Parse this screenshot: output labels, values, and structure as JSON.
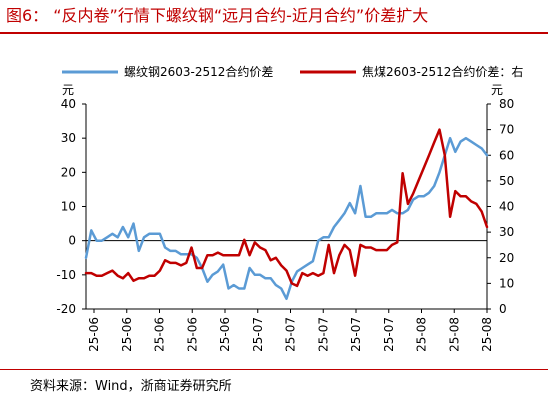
{
  "figure": {
    "title": "图6： “反内卷”行情下螺纹钢“远月合约-近月合约”价差扩大",
    "source": "资料来源：Wind，浙商证券研究所"
  },
  "colors": {
    "title": "#c00000",
    "series_rebar": "#5b9bd5",
    "series_coke": "#c00000"
  },
  "chart_data": {
    "type": "line",
    "left_axis_unit": "元",
    "right_axis_unit": "元",
    "ylim_left": [
      -20,
      40
    ],
    "yticks_left": [
      "-20",
      "-10",
      "0",
      "10",
      "20",
      "30",
      "40"
    ],
    "ylim_right": [
      0,
      80
    ],
    "yticks_right": [
      "0",
      "10",
      "20",
      "30",
      "40",
      "50",
      "60",
      "70",
      "80"
    ],
    "x_tick_labels": [
      "25-06",
      "25-06",
      "25-06",
      "25-06",
      "25-06",
      "25-07",
      "25-07",
      "25-07",
      "25-07",
      "25-07",
      "25-08",
      "25-08",
      "25-08"
    ],
    "grid": false,
    "legend_position": "top",
    "series": [
      {
        "name": "螺纹钢2603-2512合约价差",
        "axis": "left",
        "color": "#5b9bd5",
        "values": [
          -5,
          3,
          0,
          0,
          1,
          2,
          1,
          4,
          1,
          5,
          -3,
          1,
          2,
          2,
          2,
          -2,
          -3,
          -3,
          -4,
          -4,
          -4,
          -5,
          -8,
          -12,
          -10,
          -9,
          -7,
          -14,
          -13,
          -14,
          -14,
          -8,
          -10,
          -10,
          -11,
          -11,
          -13,
          -14,
          -17,
          -12,
          -9,
          -8,
          -7,
          -6,
          0,
          1,
          1,
          4,
          6,
          8,
          11,
          8,
          16,
          7,
          7,
          8,
          8,
          8,
          9,
          8,
          8,
          9,
          12,
          13,
          13,
          14,
          16,
          20,
          25,
          30,
          26,
          29,
          30,
          29,
          28,
          27,
          25
        ]
      },
      {
        "name": "焦煤2603-2512合约价差：右",
        "axis": "right",
        "color": "#c00000",
        "values": [
          14,
          14,
          13,
          13,
          14,
          15,
          13,
          12,
          14,
          11,
          12,
          12,
          13,
          13,
          15,
          19,
          18,
          18,
          17,
          18,
          24,
          16,
          16,
          21,
          21,
          22,
          21,
          21,
          21,
          21,
          27,
          21,
          26,
          24,
          23,
          19,
          20,
          17,
          15,
          10,
          9,
          14,
          13,
          14,
          13,
          14,
          25,
          14,
          21,
          25,
          23,
          13,
          25,
          24,
          24,
          23,
          23,
          23,
          25,
          26,
          53,
          41,
          45,
          50,
          55,
          60,
          65,
          70,
          60,
          36,
          46,
          44,
          44,
          42,
          41,
          38,
          32
        ]
      }
    ]
  }
}
